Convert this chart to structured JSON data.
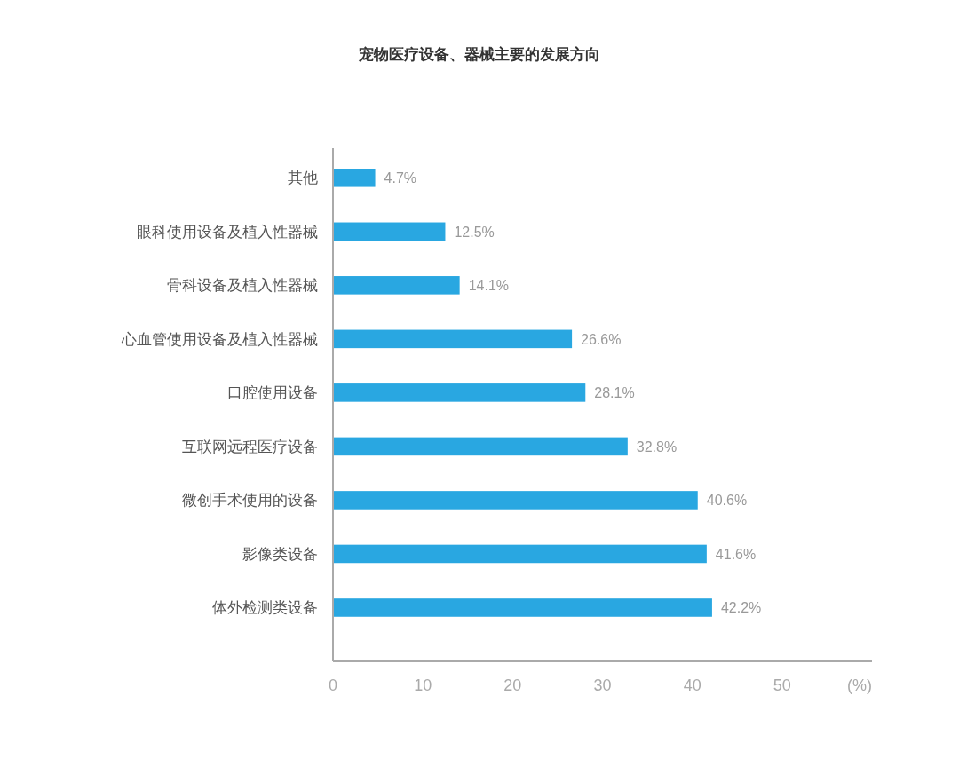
{
  "chart_data": {
    "type": "bar",
    "orientation": "horizontal",
    "title": "宠物医疗设备、器械主要的发展方向",
    "xlabel": "(%)",
    "categories": [
      "其他",
      "眼科使用设备及植入性器械",
      "骨科设备及植入性器械",
      "心血管使用设备及植入性器械",
      "口腔使用设备",
      "互联网远程医疗设备",
      "微创手术使用的设备",
      "影像类设备",
      "体外检测类设备"
    ],
    "values": [
      4.7,
      12.5,
      14.1,
      26.6,
      28.1,
      32.8,
      40.6,
      41.6,
      42.2
    ],
    "value_labels": [
      "4.7%",
      "12.5%",
      "14.1%",
      "26.6%",
      "28.1%",
      "32.8%",
      "40.6%",
      "41.6%",
      "42.2%"
    ],
    "color": "#29a7e1",
    "xlim": [
      0,
      60
    ],
    "xticks": [
      0,
      10,
      20,
      30,
      40,
      50
    ]
  }
}
